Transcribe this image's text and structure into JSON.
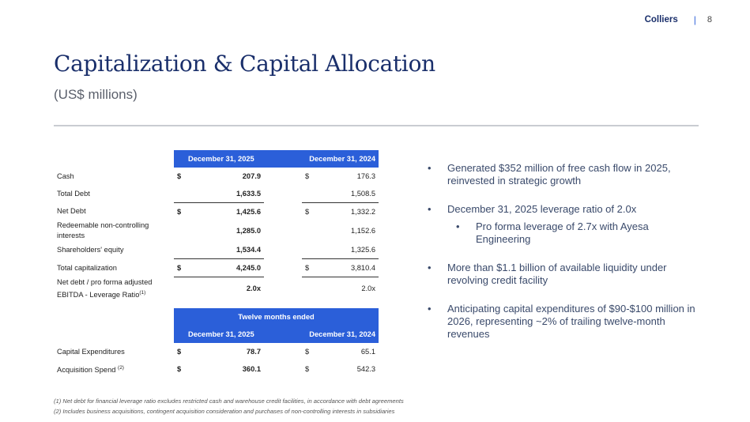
{
  "header": {
    "brand": "Colliers",
    "separator": "|",
    "page_number": "8"
  },
  "title": "Capitalization & Capital Allocation",
  "subtitle": "(US$ millions)",
  "balance_table": {
    "col1": "December 31, 2025",
    "col2": "December 31, 2024",
    "rows": [
      {
        "label": "Cash",
        "d1": "$",
        "v1": "207.9",
        "d2": "$",
        "v2": "176.3"
      },
      {
        "label": "Total Debt",
        "d1": "",
        "v1": "1,633.5",
        "d2": "",
        "v2": "1,508.5"
      },
      {
        "label": "Net Debt",
        "d1": "$",
        "v1": "1,425.6",
        "d2": "$",
        "v2": "1,332.2"
      },
      {
        "label": "Redeemable non-controlling interests",
        "d1": "",
        "v1": "1,285.0",
        "d2": "",
        "v2": "1,152.6"
      },
      {
        "label": "Shareholders' equity",
        "d1": "",
        "v1": "1,534.4",
        "d2": "",
        "v2": "1,325.6"
      },
      {
        "label": "Total capitalization",
        "d1": "$",
        "v1": "4,245.0",
        "d2": "$",
        "v2": "3,810.4"
      },
      {
        "label": "Net debt / pro forma adjusted EBITDA - Leverage Ratio",
        "sup": "(1)",
        "d1": "",
        "v1": "2.0x",
        "d2": "",
        "v2": "2.0x"
      }
    ]
  },
  "capex_table": {
    "group_header": "Twelve months ended",
    "col1": "December 31, 2025",
    "col2": "December 31, 2024",
    "rows": [
      {
        "label": "Capital Expenditures",
        "d1": "$",
        "v1": "78.7",
        "d2": "$",
        "v2": "65.1"
      },
      {
        "label": "Acquisition Spend",
        "sup": "(2)",
        "d1": "$",
        "v1": "360.1",
        "d2": "$",
        "v2": "542.3"
      }
    ]
  },
  "bullets": [
    {
      "text": "Generated $352 million of free cash flow in 2025, reinvested in strategic growth"
    },
    {
      "text": "December 31, 2025 leverage ratio of 2.0x"
    },
    {
      "text": "Pro forma leverage of 2.7x with Ayesa Engineering"
    },
    {
      "text": "More than $1.1 billion of available liquidity under revolving credit facility"
    },
    {
      "text": "Anticipating capital expenditures of $90-$100 million in 2026, representing ~2% of trailing twelve-month revenues"
    }
  ],
  "bullet_glyph": "•",
  "footnotes": [
    "(1) Net debt for financial leverage ratio excludes restricted cash and warehouse credit facilities, in accordance with debt agreements",
    "(2) Includes business acquisitions, contingent acquisition consideration and purchases of non-controlling interests in subsidiaries"
  ],
  "colors": {
    "accent": "#2b5fd9",
    "brand": "#1a2f6b",
    "divider": "#c9ccd2"
  }
}
